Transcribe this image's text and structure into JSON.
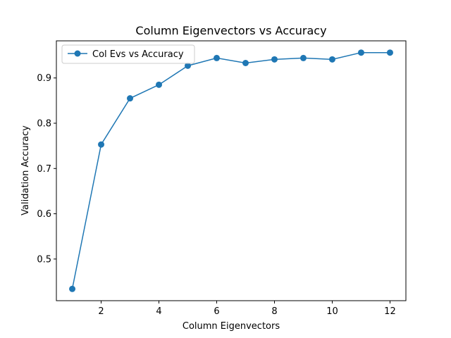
{
  "chart_data": {
    "type": "line",
    "title": "Column Eigenvectors vs Accuracy",
    "xlabel": "Column Eigenvectors",
    "ylabel": "Validation Accuracy",
    "xlim": [
      0.45,
      12.55
    ],
    "ylim": [
      0.408,
      0.982
    ],
    "xticks": [
      2,
      4,
      6,
      8,
      10,
      12
    ],
    "yticks": [
      0.5,
      0.6,
      0.7,
      0.8,
      0.9
    ],
    "grid": false,
    "legend_position": "upper-left",
    "series": [
      {
        "name": "Col Evs vs Accuracy",
        "color": "#1f77b4",
        "marker": "circle",
        "x": [
          1,
          2,
          3,
          4,
          5,
          6,
          7,
          8,
          9,
          10,
          11,
          12
        ],
        "y": [
          0.434,
          0.753,
          0.855,
          0.885,
          0.927,
          0.944,
          0.933,
          0.941,
          0.944,
          0.941,
          0.956,
          0.956
        ]
      }
    ]
  }
}
